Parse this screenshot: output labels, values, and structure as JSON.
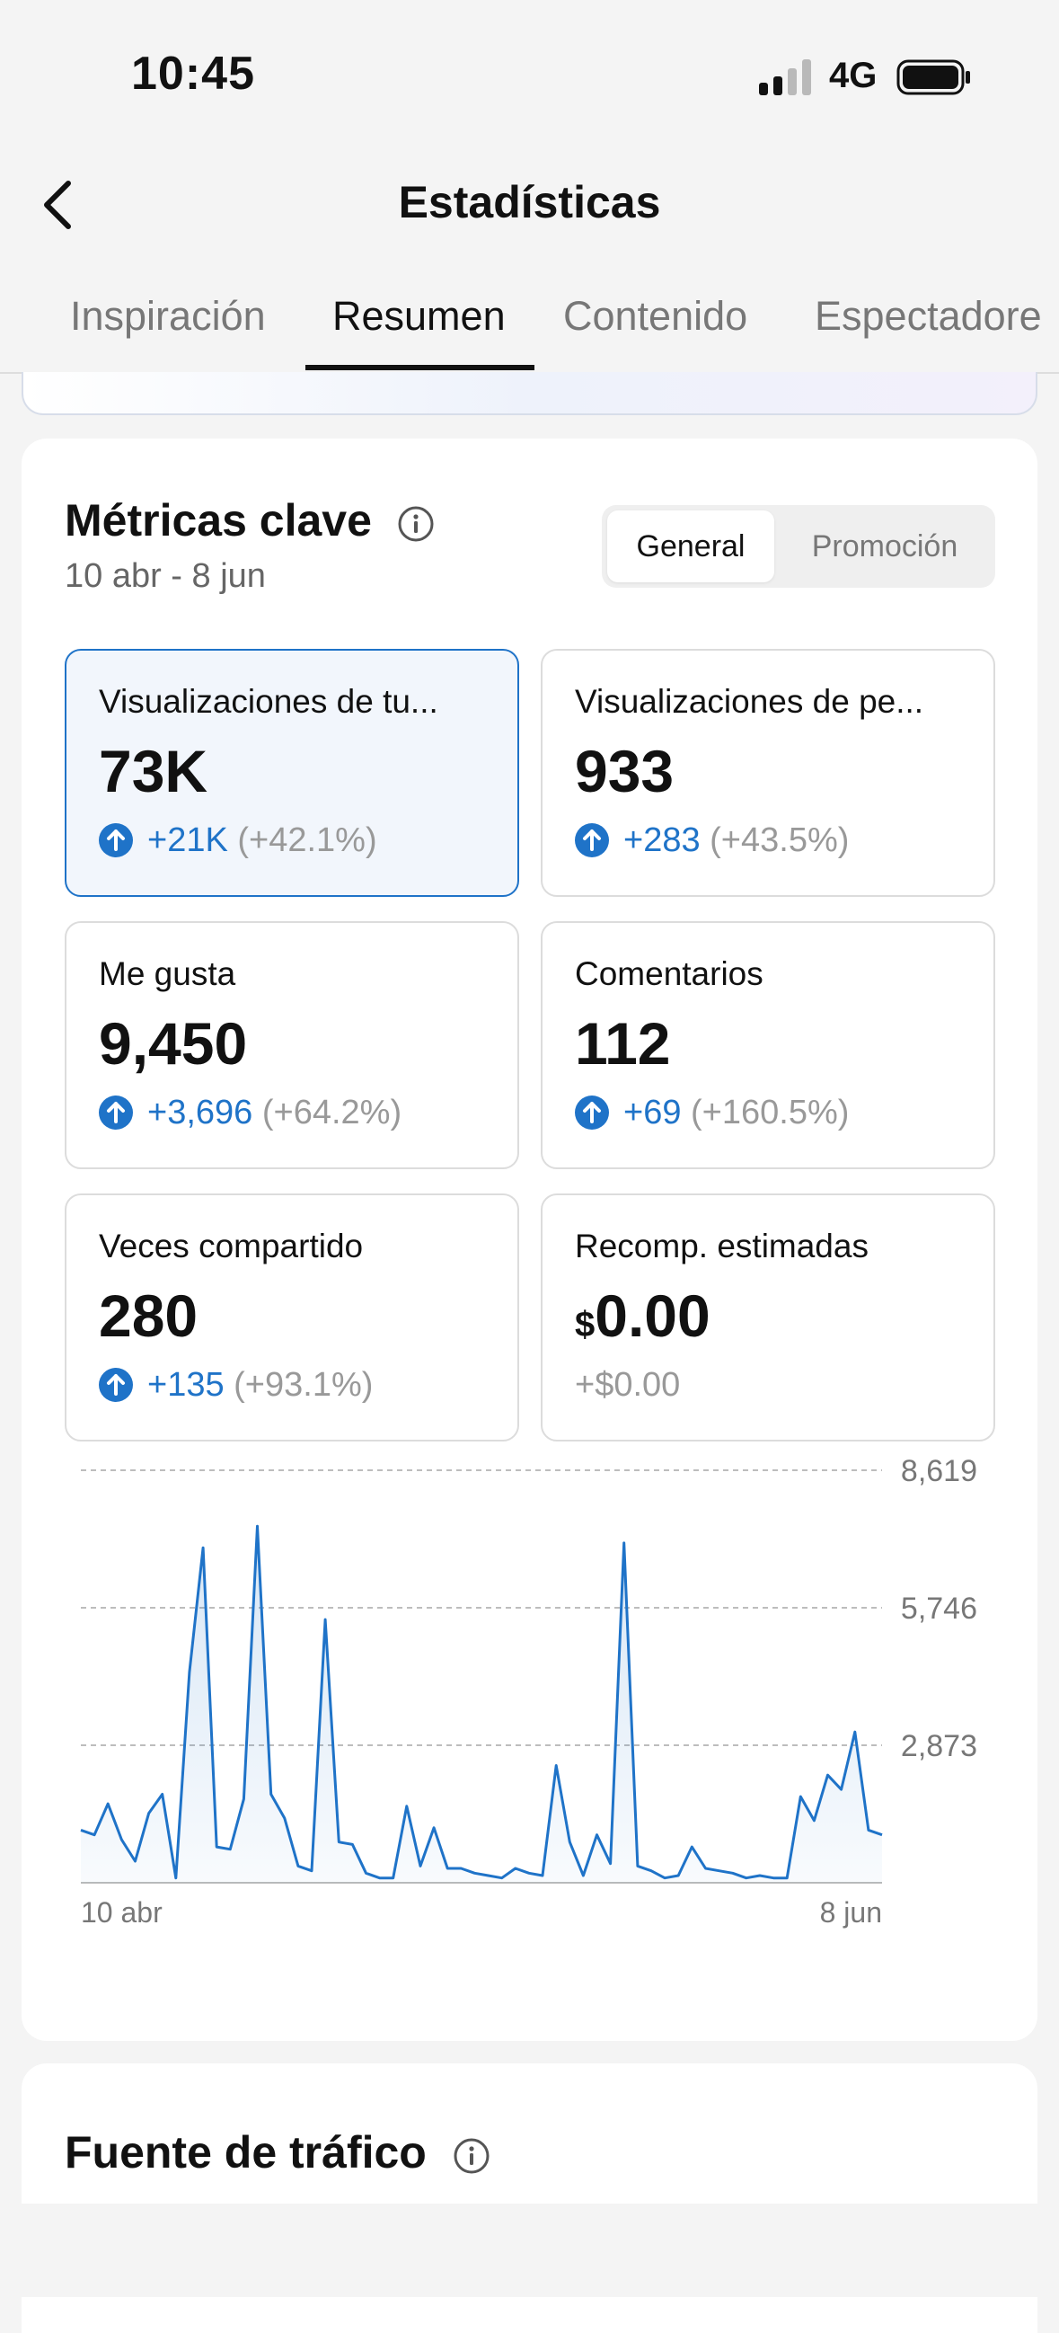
{
  "status": {
    "time": "10:45",
    "network": "4G"
  },
  "header": {
    "title": "Estadísticas"
  },
  "tabs": [
    {
      "label": "Inspiración"
    },
    {
      "label": "Resumen"
    },
    {
      "label": "Contenido"
    },
    {
      "label": "Espectadore"
    }
  ],
  "metrics_section": {
    "title": "Métricas clave",
    "date_range": "10 abr - 8 jun",
    "toggle": {
      "options": [
        "General",
        "Promoción"
      ],
      "selected": "General"
    },
    "cards": [
      {
        "label": "Visualizaciones de tu...",
        "value": "73K",
        "delta": "+21K",
        "pct": "(+42.1%)",
        "selected": true
      },
      {
        "label": "Visualizaciones de pe...",
        "value": "933",
        "delta": "+283",
        "pct": "(+43.5%)"
      },
      {
        "label": "Me gusta",
        "value": "9,450",
        "delta": "+3,696",
        "pct": "(+64.2%)"
      },
      {
        "label": "Comentarios",
        "value": "112",
        "delta": "+69",
        "pct": "(+160.5%)"
      },
      {
        "label": "Veces compartido",
        "value": "280",
        "delta": "+135",
        "pct": "(+93.1%)"
      },
      {
        "label": "Recomp. estimadas",
        "currency": "$",
        "value": "0.00",
        "delta": "+$0.00"
      }
    ]
  },
  "chart_data": {
    "type": "area",
    "y_ticks": [
      "8,619",
      "5,746",
      "2,873"
    ],
    "x_labels": [
      "10 abr",
      "8 jun"
    ],
    "ylim": [
      0,
      8619
    ],
    "grid": "dashed horizontal",
    "color": "#1f73c8",
    "values": [
      1100,
      1000,
      1650,
      900,
      450,
      1450,
      1850,
      100,
      4400,
      7000,
      750,
      700,
      1750,
      7450,
      1850,
      1350,
      350,
      250,
      5500,
      850,
      800,
      200,
      100,
      100,
      1600,
      350,
      1150,
      300,
      300,
      200,
      150,
      100,
      300,
      200,
      150,
      2450,
      850,
      150,
      1000,
      400,
      7100,
      350,
      250,
      100,
      150,
      750,
      300,
      250,
      200,
      100,
      150,
      100,
      100,
      1800,
      1300,
      2250,
      1950,
      3150,
      1100,
      1000
    ]
  },
  "traffic_section": {
    "title": "Fuente de tráfico"
  }
}
